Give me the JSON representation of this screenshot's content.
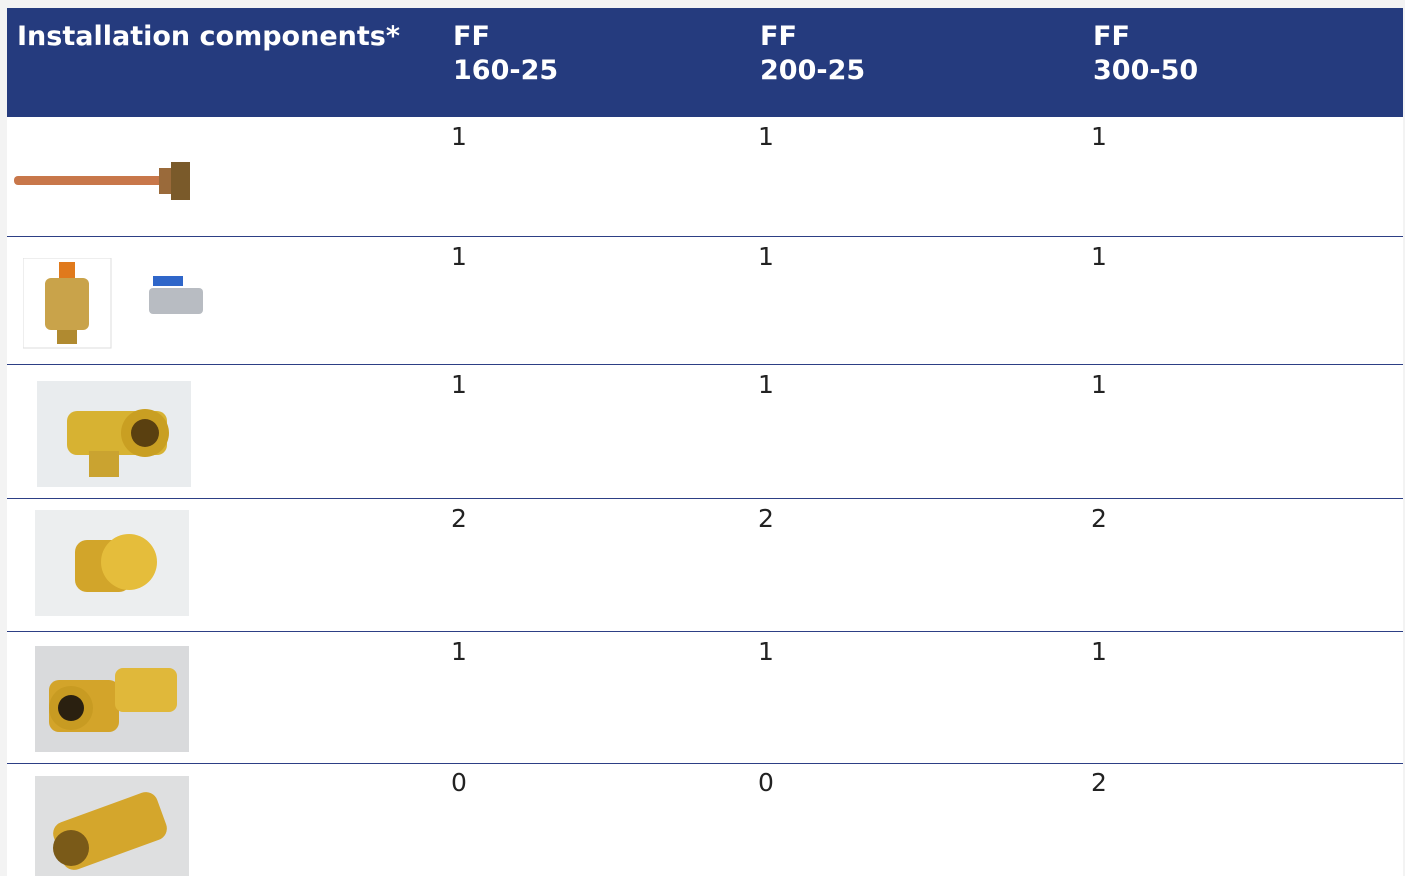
{
  "table": {
    "header": [
      "Installation components*",
      [
        "FF",
        "160-25"
      ],
      [
        "FF",
        "200-25"
      ],
      [
        "FF",
        "300-50"
      ]
    ],
    "rows": [
      [
        1,
        1,
        1
      ],
      [
        1,
        1,
        1
      ],
      [
        1,
        1,
        1
      ],
      [
        2,
        2,
        2
      ],
      [
        1,
        1,
        1
      ],
      [
        0,
        0,
        2
      ]
    ]
  }
}
